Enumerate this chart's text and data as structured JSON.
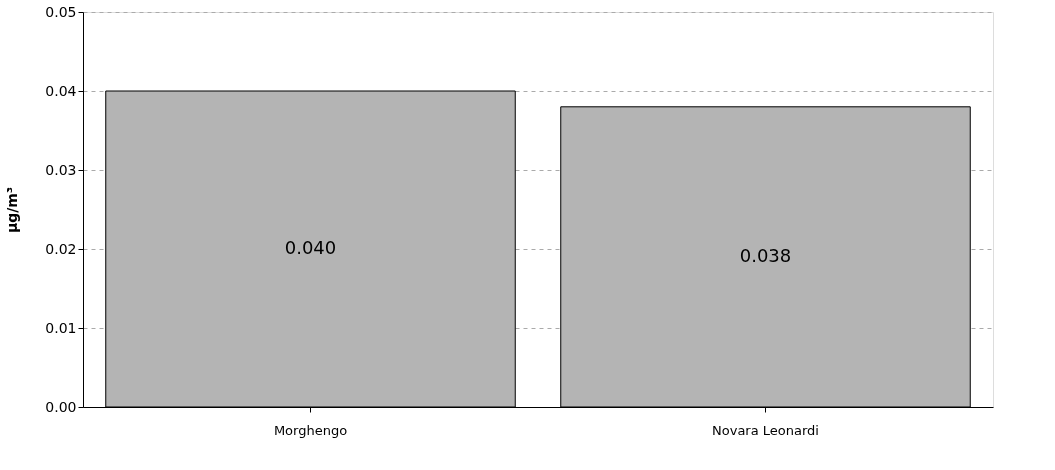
{
  "chart_data": {
    "type": "bar",
    "ylabel": "µg/m³",
    "categories": [
      "Morghengo",
      "Novara Leonardi"
    ],
    "values": [
      0.04,
      0.038
    ],
    "color": "#b4b4b4",
    "value_labels": [
      "0.040",
      "0.038"
    ],
    "ylim": [
      0,
      0.05
    ],
    "yticks": [
      {
        "value": 0,
        "label": "0.00"
      },
      {
        "value": 0.01,
        "label": "0.01"
      },
      {
        "value": 0.02,
        "label": "0.02"
      },
      {
        "value": 0.03,
        "label": "0.03"
      },
      {
        "value": 0.04,
        "label": "0.04"
      },
      {
        "value": 0.05,
        "label": "0.05"
      }
    ],
    "grid": "y"
  }
}
